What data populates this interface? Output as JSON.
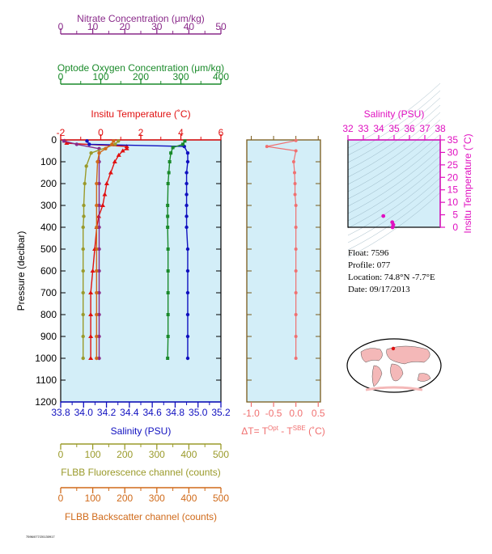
{
  "info": {
    "float": "Float:  7596",
    "profile": "Profile:  077",
    "location": "Location:  74.8°N  -7.7°E",
    "date": "Date:  09/17/2013",
    "footer": "7596/077/20130917"
  },
  "colors": {
    "nitrate": "#8a2a8a",
    "oxygen": "#1a8a2a",
    "temperature": "#e01010",
    "salinity": "#1010c0",
    "fluorescence": "#9a9a2a",
    "backscatter": "#d06a1a",
    "delta": "#f07070",
    "ts": "#e010c0",
    "panel_bg": "#d3eef8",
    "axis_frame": "#7a5a1a"
  },
  "chart_data": [
    {
      "type": "line",
      "name": "main-profile",
      "ylabel": "Pressure (decibar)",
      "ylim": [
        1200,
        0
      ],
      "yticks": [
        "0",
        "100",
        "200",
        "300",
        "400",
        "500",
        "600",
        "700",
        "800",
        "900",
        "1000",
        "1100",
        "1200"
      ],
      "axes": {
        "nitrate": {
          "label": "Nitrate Concentration (μm/kg)",
          "ticks": [
            "0",
            "10",
            "20",
            "30",
            "40",
            "50"
          ],
          "range": [
            0,
            50
          ]
        },
        "oxygen": {
          "label": "Optode Oxygen Concentration (μm/kg)",
          "ticks": [
            "0",
            "100",
            "200",
            "300",
            "400"
          ],
          "range": [
            0,
            400
          ]
        },
        "temperature": {
          "label": "Insitu Temperature (˚C)",
          "ticks": [
            "-2",
            "0",
            "2",
            "4",
            "6"
          ],
          "range": [
            -2,
            6
          ]
        },
        "salinity": {
          "label": "Salinity (PSU)",
          "ticks": [
            "33.8",
            "34.0",
            "34.2",
            "34.4",
            "34.6",
            "34.8",
            "35.0",
            "35.2"
          ],
          "range": [
            33.8,
            35.2
          ]
        },
        "fluorescence": {
          "label": "FLBB Fluorescence channel (counts)",
          "ticks": [
            "0",
            "100",
            "200",
            "300",
            "400",
            "500"
          ],
          "range": [
            0,
            500
          ]
        },
        "backscatter": {
          "label": "FLBB Backscatter channel (counts)",
          "ticks": [
            "0",
            "100",
            "200",
            "300",
            "400",
            "500"
          ],
          "range": [
            0,
            500
          ]
        }
      },
      "series": [
        {
          "key": "temperature",
          "marker": "triangle",
          "points": [
            [
              -1.8,
              5
            ],
            [
              -1.7,
              15
            ],
            [
              1.3,
              30
            ],
            [
              1.3,
              40
            ],
            [
              1.1,
              50
            ],
            [
              0.9,
              70
            ],
            [
              0.7,
              100
            ],
            [
              0.5,
              150
            ],
            [
              0.3,
              200
            ],
            [
              0.2,
              250
            ],
            [
              0.1,
              300
            ],
            [
              -0.1,
              350
            ],
            [
              -0.2,
              400
            ],
            [
              -0.3,
              500
            ],
            [
              -0.4,
              600
            ],
            [
              -0.5,
              700
            ],
            [
              -0.5,
              800
            ],
            [
              -0.5,
              900
            ],
            [
              -0.5,
              1000
            ]
          ]
        },
        {
          "key": "salinity",
          "marker": "circle",
          "points": [
            [
              34.03,
              5
            ],
            [
              34.05,
              20
            ],
            [
              34.88,
              30
            ],
            [
              34.91,
              60
            ],
            [
              34.91,
              100
            ],
            [
              34.9,
              150
            ],
            [
              34.9,
              200
            ],
            [
              34.9,
              250
            ],
            [
              34.9,
              300
            ],
            [
              34.9,
              350
            ],
            [
              34.9,
              400
            ],
            [
              34.91,
              500
            ],
            [
              34.91,
              600
            ],
            [
              34.91,
              700
            ],
            [
              34.91,
              800
            ],
            [
              34.91,
              900
            ],
            [
              34.91,
              1000
            ]
          ]
        },
        {
          "key": "oxygen",
          "marker": "square",
          "points": [
            [
              310,
              5
            ],
            [
              305,
              20
            ],
            [
              280,
              35
            ],
            [
              275,
              60
            ],
            [
              272,
              100
            ],
            [
              270,
              150
            ],
            [
              268,
              200
            ],
            [
              267,
              300
            ],
            [
              267,
              350
            ],
            [
              267,
              400
            ],
            [
              268,
              500
            ],
            [
              268,
              600
            ],
            [
              268,
              700
            ],
            [
              268,
              800
            ],
            [
              268,
              900
            ],
            [
              267,
              1000
            ]
          ]
        },
        {
          "key": "nitrate",
          "marker": "circle",
          "points": [
            [
              1,
              5
            ],
            [
              5,
              20
            ],
            [
              12,
              40
            ],
            [
              12,
              100
            ],
            [
              12,
              200
            ],
            [
              12,
              300
            ],
            [
              12,
              400
            ],
            [
              12,
              500
            ],
            [
              12,
              600
            ],
            [
              12,
              700
            ],
            [
              12,
              800
            ],
            [
              12,
              900
            ],
            [
              12,
              1000
            ]
          ]
        },
        {
          "key": "fluorescence",
          "marker": "circle",
          "points": [
            [
              180,
              5
            ],
            [
              170,
              20
            ],
            [
              95,
              60
            ],
            [
              80,
              120
            ],
            [
              75,
              200
            ],
            [
              72,
              300
            ],
            [
              72,
              350
            ],
            [
              70,
              400
            ],
            [
              70,
              500
            ],
            [
              70,
              600
            ],
            [
              70,
              700
            ],
            [
              70,
              800
            ],
            [
              70,
              900
            ],
            [
              70,
              1000
            ]
          ]
        },
        {
          "key": "backscatter",
          "marker": "circle",
          "points": [
            [
              165,
              5
            ],
            [
              160,
              20
            ],
            [
              140,
              40
            ],
            [
              120,
              60
            ],
            [
              115,
              100
            ],
            [
              112,
              200
            ],
            [
              112,
              300
            ],
            [
              112,
              400
            ],
            [
              112,
              500
            ],
            [
              112,
              600
            ],
            [
              112,
              700
            ],
            [
              112,
              800
            ],
            [
              112,
              900
            ],
            [
              112,
              1000
            ]
          ]
        }
      ]
    },
    {
      "type": "line",
      "name": "delta-temperature",
      "xlabel": "ΔT= T",
      "xlabel_sup1": "Opt",
      "xlabel_mid": " - T",
      "xlabel_sup2": "SBE",
      "xlabel_end": " (˚C)",
      "xticks": [
        "-1.0",
        "-0.5",
        "0.0",
        "0.5"
      ],
      "xlim": [
        -1.1,
        0.55
      ],
      "ylim": [
        1200,
        0
      ],
      "points": [
        [
          0.0,
          3
        ],
        [
          -0.65,
          30
        ],
        [
          0.0,
          50
        ],
        [
          -0.05,
          100
        ],
        [
          -0.03,
          150
        ],
        [
          -0.02,
          200
        ],
        [
          -0.02,
          250
        ],
        [
          0.0,
          300
        ],
        [
          0.0,
          400
        ],
        [
          0.0,
          500
        ],
        [
          0.0,
          600
        ],
        [
          0.0,
          700
        ],
        [
          0.0,
          800
        ],
        [
          0.0,
          900
        ],
        [
          0.0,
          1000
        ]
      ]
    },
    {
      "type": "scatter",
      "name": "ts-diagram",
      "xlabel": "Salinity (PSU)",
      "ylabel": "Insitu Temperature (˚C)",
      "xticks": [
        "32",
        "33",
        "34",
        "35",
        "36",
        "37",
        "38"
      ],
      "yticks": [
        "0",
        "5",
        "10",
        "15",
        "20",
        "25",
        "30",
        "35"
      ],
      "xlim": [
        32,
        38
      ],
      "ylim": [
        0,
        35
      ],
      "points": [
        [
          34.9,
          0
        ],
        [
          34.95,
          1
        ],
        [
          34.88,
          2
        ],
        [
          34.3,
          4.5
        ]
      ]
    }
  ]
}
